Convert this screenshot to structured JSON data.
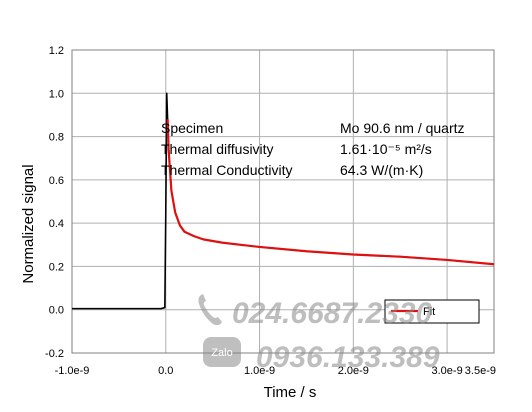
{
  "chart_data": {
    "type": "line",
    "xlabel": "Time  / s",
    "ylabel": "Normalized  signal",
    "xlim": [
      -1e-09,
      3.5e-09
    ],
    "ylim": [
      -0.2,
      1.2
    ],
    "grid": true,
    "x_tick_labels": [
      "-1.0e-9",
      "0.0",
      "1.0e-9",
      "2.0e-9",
      "3.0e-9",
      "3.5e-9"
    ],
    "x_tick_values": [
      -1e-09,
      0.0,
      1e-09,
      2e-09,
      3e-09,
      3.5e-09
    ],
    "y_tick_labels": [
      "-0.2",
      "0.0",
      "0.2",
      "0.4",
      "0.6",
      "0.8",
      "1.0",
      "1.2"
    ],
    "y_tick_values": [
      -0.2,
      0.0,
      0.2,
      0.4,
      0.6,
      0.8,
      1.0,
      1.2
    ],
    "series": [
      {
        "name": "",
        "color": "#000000",
        "x": [
          -1e-09,
          -8e-10,
          -6e-10,
          -4e-10,
          -2e-10,
          -5e-11,
          -1e-11,
          0.0,
          1e-11,
          3e-11,
          6e-11,
          1e-10,
          1.5e-10,
          2e-10,
          3e-10,
          4e-10,
          6e-10,
          8e-10,
          1e-09,
          1.5e-09,
          2e-09,
          2.5e-09,
          3e-09,
          3.5e-09
        ],
        "y": [
          0.005,
          0.005,
          0.005,
          0.005,
          0.005,
          0.005,
          0.01,
          0.45,
          1.0,
          0.75,
          0.55,
          0.45,
          0.39,
          0.36,
          0.34,
          0.325,
          0.31,
          0.3,
          0.29,
          0.27,
          0.255,
          0.245,
          0.23,
          0.21
        ]
      },
      {
        "name": "Fit",
        "color": "#e01010",
        "x": [
          2e-11,
          3e-11,
          6e-11,
          1e-10,
          1.5e-10,
          2e-10,
          3e-10,
          4e-10,
          6e-10,
          8e-10,
          1e-09,
          1.5e-09,
          2e-09,
          2.5e-09,
          3e-09,
          3.5e-09
        ],
        "y": [
          0.88,
          0.74,
          0.55,
          0.45,
          0.39,
          0.36,
          0.34,
          0.325,
          0.31,
          0.3,
          0.29,
          0.27,
          0.255,
          0.245,
          0.23,
          0.21
        ]
      }
    ],
    "annotation": {
      "rows": [
        {
          "label": "Specimen",
          "value": "Mo 90.6 nm / quartz"
        },
        {
          "label": "Thermal  diffusivity",
          "value": "1.61·10⁻⁵ m²/s"
        },
        {
          "label": "Thermal  Conductivity",
          "value": "64.3 W/(m·K)"
        }
      ]
    },
    "legend": {
      "placement": "bottom-right",
      "entry": "Fit"
    }
  },
  "watermark": {
    "phone1": "024.6687.2330",
    "phone2": "0936.133.389",
    "app": "Zalo"
  }
}
